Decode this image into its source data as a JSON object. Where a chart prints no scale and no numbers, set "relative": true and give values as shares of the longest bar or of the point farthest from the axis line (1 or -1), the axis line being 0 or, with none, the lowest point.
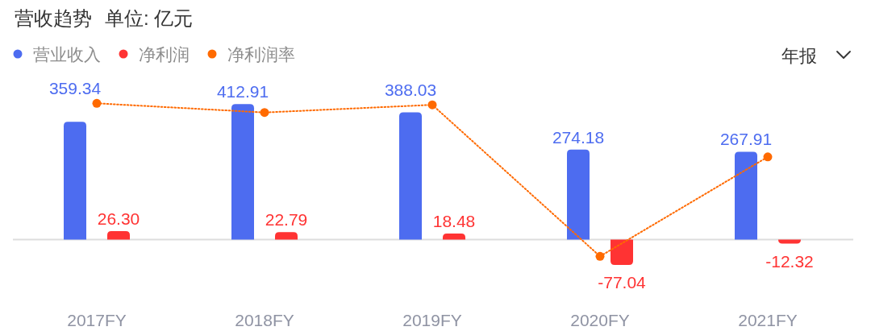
{
  "chart_data": [
    {
      "type": "bar",
      "title": "营收趋势",
      "subtitle": "单位: 亿元",
      "categories": [
        "2017FY",
        "2018FY",
        "2019FY",
        "2020FY",
        "2021FY"
      ],
      "series": [
        {
          "name": "营业收入",
          "color": "#4d6cf0",
          "values": [
            359.34,
            412.91,
            388.03,
            274.18,
            267.91
          ],
          "value_labels": [
            "359.34",
            "412.91",
            "388.03",
            "274.18",
            "267.91"
          ]
        },
        {
          "name": "净利润",
          "color": "#ff3333",
          "values": [
            26.3,
            22.79,
            18.48,
            -77.04,
            -12.32
          ],
          "value_labels": [
            "26.30",
            "22.79",
            "18.48",
            "-77.04",
            "-12.32"
          ]
        }
      ],
      "legend": "top left",
      "annotations": [
        "年报"
      ]
    },
    {
      "type": "line",
      "relative": true,
      "categories": [
        null,
        null,
        null,
        null,
        null
      ],
      "series": [
        {
          "name": "净利润率",
          "color": "#ff6a00",
          "values": [
            1,
            0.94,
            0.99,
            0,
            0.65
          ]
        }
      ],
      "marker": "circle",
      "line_style": "dotted",
      "legend": "top left"
    }
  ]
}
